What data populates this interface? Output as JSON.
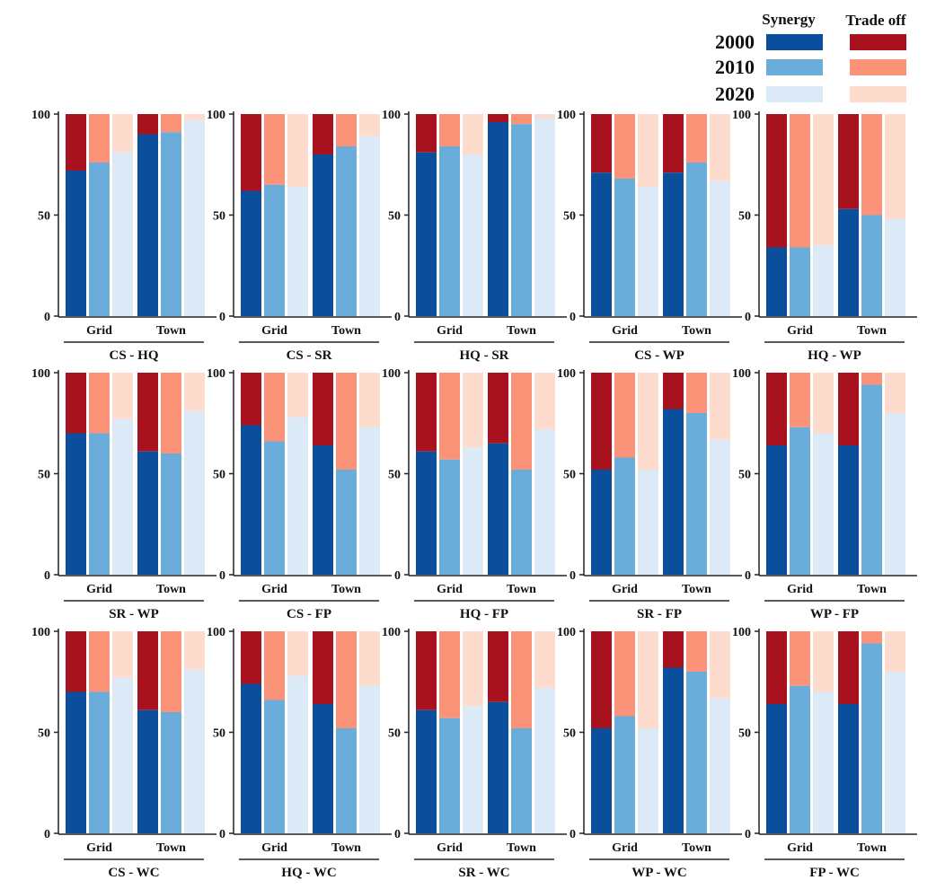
{
  "chart_data": {
    "type": "bar",
    "stacked": true,
    "ylim": [
      0,
      100
    ],
    "yticks": [
      0,
      50,
      100
    ],
    "groups": [
      "Grid",
      "Town"
    ],
    "years": [
      "2000",
      "2010",
      "2020"
    ],
    "legend": {
      "position": "top-right",
      "synergy_label": "Synergy",
      "tradeoff_label": "Trade off",
      "synergy_colors": [
        "#0b4f9c",
        "#6aaddb",
        "#dce9f6"
      ],
      "tradeoff_colors": [
        "#a8111e",
        "#fa9378",
        "#fddccd"
      ]
    },
    "panels": [
      {
        "title": "CS - HQ",
        "synergy": {
          "Grid": [
            72,
            76,
            81
          ],
          "Town": [
            90,
            91,
            97
          ]
        }
      },
      {
        "title": "CS - SR",
        "synergy": {
          "Grid": [
            62,
            65,
            64
          ],
          "Town": [
            80,
            84,
            89
          ]
        }
      },
      {
        "title": "HQ - SR",
        "synergy": {
          "Grid": [
            81,
            84,
            80
          ],
          "Town": [
            96,
            95,
            98
          ]
        }
      },
      {
        "title": "CS - WP",
        "synergy": {
          "Grid": [
            71,
            68,
            64
          ],
          "Town": [
            71,
            76,
            67
          ]
        }
      },
      {
        "title": "HQ - WP",
        "synergy": {
          "Grid": [
            34,
            34,
            35
          ],
          "Town": [
            53,
            50,
            48
          ]
        }
      },
      {
        "title": "SR - WP",
        "synergy": {
          "Grid": [
            70,
            70,
            77
          ],
          "Town": [
            61,
            60,
            81
          ]
        }
      },
      {
        "title": "CS - FP",
        "synergy": {
          "Grid": [
            74,
            66,
            78
          ],
          "Town": [
            64,
            52,
            73
          ]
        }
      },
      {
        "title": "HQ - FP",
        "synergy": {
          "Grid": [
            61,
            57,
            63
          ],
          "Town": [
            65,
            52,
            72
          ]
        }
      },
      {
        "title": "SR - FP",
        "synergy": {
          "Grid": [
            52,
            58,
            52
          ],
          "Town": [
            82,
            80,
            67
          ]
        }
      },
      {
        "title": "WP - FP",
        "synergy": {
          "Grid": [
            64,
            73,
            70
          ],
          "Town": [
            64,
            94,
            80
          ]
        }
      },
      {
        "title": "CS - WC",
        "synergy": {
          "Grid": [
            70,
            70,
            77
          ],
          "Town": [
            61,
            60,
            81
          ]
        }
      },
      {
        "title": "HQ - WC",
        "synergy": {
          "Grid": [
            74,
            66,
            78
          ],
          "Town": [
            64,
            52,
            73
          ]
        }
      },
      {
        "title": "SR - WC",
        "synergy": {
          "Grid": [
            61,
            57,
            63
          ],
          "Town": [
            65,
            52,
            72
          ]
        }
      },
      {
        "title": "WP - WC",
        "synergy": {
          "Grid": [
            52,
            58,
            52
          ],
          "Town": [
            82,
            80,
            67
          ]
        }
      },
      {
        "title": "FP - WC",
        "synergy": {
          "Grid": [
            64,
            73,
            70
          ],
          "Town": [
            64,
            94,
            80
          ]
        }
      }
    ]
  }
}
